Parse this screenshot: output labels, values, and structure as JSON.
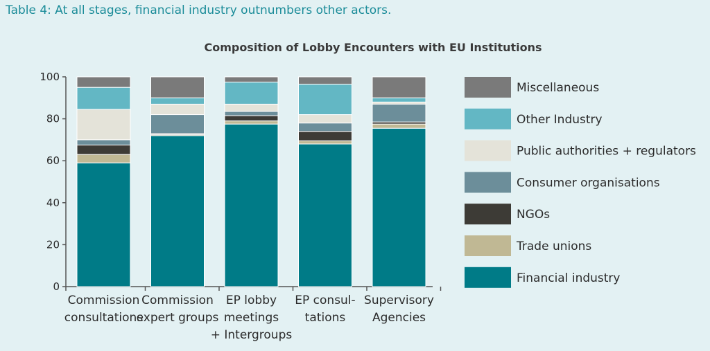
{
  "caption": "Table 4: At all stages, financial industry outnumbers other actors.",
  "chart_data": {
    "type": "bar",
    "stacked": true,
    "title": "Composition of Lobby Encounters with EU Institutions",
    "xlabel": "",
    "ylabel": "",
    "ylim": [
      0,
      100
    ],
    "yticks": [
      0,
      20,
      40,
      60,
      80,
      100
    ],
    "grid": false,
    "legend_position": "right",
    "categories": [
      [
        "Commission",
        "consultations"
      ],
      [
        "Commission",
        "expert groups"
      ],
      [
        "EP lobby",
        "meetings",
        "+ Intergroups"
      ],
      [
        "EP consul-",
        "tations"
      ],
      [
        "Supervisory",
        "Agencies"
      ]
    ],
    "series": [
      {
        "name": "Financial industry",
        "color": "#007b87",
        "values": [
          59,
          72,
          77.5,
          68,
          75.5
        ]
      },
      {
        "name": "Trade unions",
        "color": "#c0b894",
        "values": [
          4,
          0.5,
          1.5,
          1.5,
          2
        ]
      },
      {
        "name": "NGOs",
        "color": "#3d3b36",
        "values": [
          4.5,
          0.5,
          2.5,
          4.5,
          1
        ]
      },
      {
        "name": "Consumer organisations",
        "color": "#6c8e9a",
        "values": [
          2.5,
          9,
          2,
          4,
          8.5
        ]
      },
      {
        "name": "Public authorities + regulators",
        "color": "#e4e3d9",
        "values": [
          14.5,
          5,
          3.5,
          4,
          1
        ]
      },
      {
        "name": "Other Industry",
        "color": "#63b7c4",
        "values": [
          10.5,
          3,
          10.5,
          14.5,
          2
        ]
      },
      {
        "name": "Miscellaneous",
        "color": "#7a7a7a",
        "values": [
          5,
          10,
          2.5,
          3.5,
          10
        ]
      }
    ]
  }
}
